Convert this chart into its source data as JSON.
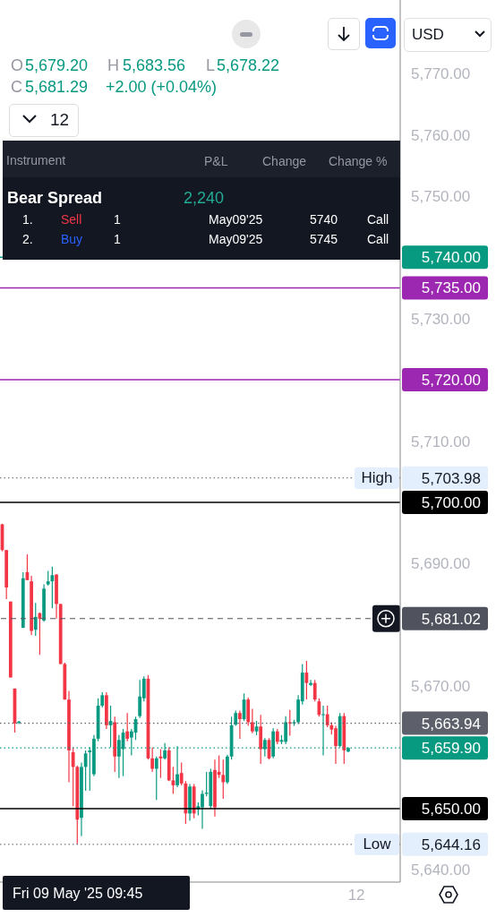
{
  "chart_data": {
    "type": "candlestick",
    "categories": [
      null,
      null,
      null,
      null,
      null,
      null,
      null,
      null,
      null,
      null,
      null,
      null,
      null,
      null,
      null,
      null,
      null,
      null,
      null,
      null,
      null,
      null,
      null,
      null,
      null,
      null,
      null,
      null,
      null,
      null,
      null,
      null,
      null,
      null,
      null,
      null,
      null,
      null,
      null,
      null,
      null,
      null,
      null,
      null,
      null,
      null,
      null,
      null,
      null,
      null,
      null,
      null,
      null,
      null,
      null,
      null,
      null,
      null,
      null,
      null,
      null,
      null,
      null,
      null,
      null,
      null,
      null,
      null,
      null,
      null,
      null,
      null,
      null,
      null,
      null,
      null,
      null,
      null,
      null,
      null,
      null,
      null,
      null,
      null,
      null,
      "12",
      null,
      null,
      null,
      null,
      null,
      null,
      null,
      null,
      null,
      null
    ],
    "ohlc": [
      [
        5696.4,
        5696.5,
        5692.0,
        5692.2
      ],
      [
        5692.2,
        5692.2,
        5684.2,
        5686.1
      ],
      [
        5683.8,
        5683.8,
        5671.4,
        5671.4
      ],
      [
        5669.6,
        5669.6,
        5662.4,
        5663.9
      ],
      [
        5664.0,
        5664.3,
        5663.8,
        5664.2
      ],
      [
        5679.5,
        5688.6,
        5679.5,
        5687.6
      ],
      [
        5688.6,
        5691.5,
        5687.3,
        5687.3
      ],
      [
        5687.1,
        5688.0,
        5678.3,
        5679.0
      ],
      [
        5679.2,
        5683.56,
        5678.22,
        5681.29
      ],
      [
        5681.9,
        5682.0,
        5675.1,
        5681.0
      ],
      [
        5680.7,
        5686.6,
        5680.5,
        5685.9
      ],
      [
        5686.6,
        5688.8,
        5686.4,
        5687.1
      ],
      [
        5687.1,
        5689.5,
        5682.7,
        5688.1
      ],
      [
        5688.2,
        5688.3,
        5681.0,
        5683.4
      ],
      [
        5683.4,
        5683.4,
        5673.6,
        5673.6
      ],
      [
        5673.6,
        5673.8,
        5667.8,
        5667.8
      ],
      [
        5667.8,
        5669.2,
        5654.3,
        5659.5
      ],
      [
        5659.2,
        5660.0,
        5650.4,
        5656.8
      ],
      [
        5656.8,
        5657.0,
        5644.16,
        5648.2
      ],
      [
        5648.5,
        5657.5,
        5645.5,
        5656.8
      ],
      [
        5656.8,
        5659.5,
        5652.9,
        5659.0
      ],
      [
        5659.2,
        5660.0,
        5652.9,
        5659.5
      ],
      [
        5655.6,
        5662.0,
        5655.3,
        5661.4
      ],
      [
        5661.4,
        5668.0,
        5661.0,
        5666.8
      ],
      [
        5666.8,
        5669.0,
        5666.5,
        5668.5
      ],
      [
        5668.5,
        5669.0,
        5663.0,
        5663.6
      ],
      [
        5663.6,
        5666.8,
        5660.0,
        5664.3
      ],
      [
        5664.1,
        5665.0,
        5656.0,
        5658.5
      ],
      [
        5658.5,
        5662.0,
        5655.0,
        5661.2
      ],
      [
        5659.7,
        5663.0,
        5655.3,
        5662.4
      ],
      [
        5662.6,
        5665.6,
        5661.0,
        5661.4
      ],
      [
        5661.6,
        5663.0,
        5658.7,
        5662.6
      ],
      [
        5662.4,
        5665.0,
        5661.2,
        5664.6
      ],
      [
        5665.1,
        5671.0,
        5664.8,
        5668.3
      ],
      [
        5668.0,
        5671.6,
        5667.5,
        5671.2
      ],
      [
        5671.2,
        5671.8,
        5658.0,
        5658.2
      ],
      [
        5658.2,
        5660.0,
        5656.0,
        5656.5
      ],
      [
        5656.5,
        5658.5,
        5651.4,
        5658.2
      ],
      [
        5658.5,
        5659.7,
        5655.0,
        5658.2
      ],
      [
        5658.2,
        5660.7,
        5658.0,
        5659.5
      ],
      [
        5659.5,
        5660.0,
        5654.5,
        5654.6
      ],
      [
        5654.6,
        5656.8,
        5652.4,
        5653.8
      ],
      [
        5653.8,
        5660.2,
        5653.5,
        5655.6
      ],
      [
        5655.8,
        5657.5,
        5653.8,
        5654.1
      ],
      [
        5654.1,
        5654.5,
        5647.5,
        5649.2
      ],
      [
        5649.2,
        5654.0,
        5648.0,
        5653.6
      ],
      [
        5653.6,
        5654.0,
        5648.4,
        5649.2
      ],
      [
        5649.9,
        5651.0,
        5648.9,
        5650.4
      ],
      [
        5650.2,
        5653.0,
        5646.7,
        5652.4
      ],
      [
        5652.4,
        5656.0,
        5652.0,
        5652.6
      ],
      [
        5650.4,
        5656.5,
        5650.0,
        5656.0
      ],
      [
        5656.3,
        5658.0,
        5648.7,
        5650.2
      ],
      [
        5656.0,
        5658.7,
        5655.0,
        5655.5
      ],
      [
        5655.5,
        5658.0,
        5651.6,
        5654.3
      ],
      [
        5654.3,
        5658.8,
        5654.0,
        5658.5
      ],
      [
        5658.5,
        5665.0,
        5658.0,
        5663.6
      ],
      [
        5663.7,
        5666.0,
        5663.5,
        5665.6
      ],
      [
        5665.6,
        5666.0,
        5661.4,
        5664.6
      ],
      [
        5664.6,
        5668.8,
        5664.3,
        5667.8
      ],
      [
        5667.8,
        5668.1,
        5663.5,
        5664.1
      ],
      [
        5664.1,
        5666.3,
        5662.3,
        5662.6
      ],
      [
        5662.6,
        5664.3,
        5662.0,
        5663.4
      ],
      [
        5663.4,
        5665.3,
        5657.3,
        5659.7
      ],
      [
        5659.7,
        5661.5,
        5658.5,
        5661.2
      ],
      [
        5661.2,
        5661.5,
        5658.0,
        5658.2
      ],
      [
        5658.5,
        5663.1,
        5658.2,
        5662.6
      ],
      [
        5662.6,
        5663.0,
        5660.5,
        5660.9
      ],
      [
        5660.9,
        5662.0,
        5660.5,
        5661.2
      ],
      [
        5660.9,
        5665.1,
        5660.5,
        5664.1
      ],
      [
        5664.1,
        5666.1,
        5661.9,
        5663.9
      ],
      [
        5663.9,
        5664.5,
        5663.5,
        5664.1
      ],
      [
        5664.1,
        5668.5,
        5663.8,
        5667.8
      ],
      [
        5667.5,
        5673.6,
        5667.0,
        5672.2
      ],
      [
        5672.2,
        5674.1,
        5667.8,
        5670.5
      ],
      [
        5670.2,
        5671.0,
        5670.0,
        5670.5
      ],
      [
        5670.5,
        5671.0,
        5667.5,
        5667.8
      ],
      [
        5667.5,
        5668.0,
        5665.0,
        5665.3
      ],
      [
        5665.3,
        5666.8,
        5658.7,
        5665.4
      ],
      [
        5665.4,
        5666.8,
        5663.3,
        5663.6
      ],
      [
        5663.6,
        5664.1,
        5662.1,
        5662.9
      ],
      [
        5663.1,
        5663.5,
        5657.3,
        5660.2
      ],
      [
        5660.2,
        5665.6,
        5660.0,
        5665.1
      ],
      [
        5665.1,
        5665.6,
        5657.3,
        5659.5
      ],
      [
        5659.3,
        5660.0,
        5659.2,
        5659.9
      ],
      null,
      null,
      null,
      null,
      null,
      null,
      null,
      null,
      null,
      null,
      null,
      null
    ],
    "colors": [
      "#f23645",
      "#f23645",
      "#f23645",
      "#f23645",
      "#089981",
      "#089981",
      "#f23645",
      "#f23645",
      "#089981",
      "#f23645",
      "#089981",
      "#089981",
      "#089981",
      "#f23645",
      "#f23645",
      "#f23645",
      "#f23645",
      "#f23645",
      "#f23645",
      "#089981",
      "#089981",
      "#089981",
      "#089981",
      "#089981",
      "#089981",
      "#f23645",
      "#089981",
      "#f23645",
      "#089981",
      "#089981",
      "#f23645",
      "#089981",
      "#089981",
      "#089981",
      "#089981",
      "#f23645",
      "#f23645",
      "#089981",
      "#f23645",
      "#089981",
      "#f23645",
      "#f23645",
      "#089981",
      "#f23645",
      "#f23645",
      "#089981",
      "#f23645",
      "#089981",
      "#089981",
      "#089981",
      "#089981",
      "#f23645",
      "#f23645",
      "#f23645",
      "#089981",
      "#089981",
      "#089981",
      "#f23645",
      "#089981",
      "#f23645",
      "#f23645",
      "#089981",
      "#f23645",
      "#089981",
      "#f23645",
      "#089981",
      "#f23645",
      "#089981",
      "#089981",
      "#f23645",
      "#089981",
      "#089981",
      "#089981",
      "#f23645",
      "#089981",
      "#f23645",
      "#f23645",
      "#089981",
      "#f23645",
      "#f23645",
      "#f23645",
      "#089981",
      "#f23645",
      "#089981",
      null,
      null,
      null,
      null,
      null,
      null,
      null,
      null,
      null,
      null,
      null,
      null
    ],
    "ylim": [
      5638,
      5782
    ],
    "yticks": [
      {
        "value": 5640,
        "label": "5,640.00"
      },
      {
        "value": 5670,
        "label": "5,670.00"
      },
      {
        "value": 5690,
        "label": "5,690.00"
      },
      {
        "value": 5710,
        "label": "5,710.00"
      },
      {
        "value": 5730,
        "label": "5,730.00"
      },
      {
        "value": 5750,
        "label": "5,750.00"
      },
      {
        "value": 5760,
        "label": "5,760.00"
      },
      {
        "value": 5770,
        "label": "5,770.00"
      }
    ],
    "ref_lines": [
      {
        "axis": "y",
        "value": 5740,
        "label": "5,740.00",
        "color": "#089981",
        "line_style": "solid"
      },
      {
        "axis": "y",
        "value": 5735,
        "label": "5,735.00",
        "color": "#9c27b0",
        "line_style": "solid"
      },
      {
        "axis": "y",
        "value": 5720,
        "label": "5,720.00",
        "color": "#9c27b0",
        "line_style": "solid"
      },
      {
        "axis": "y",
        "value": 5703.98,
        "label": "5,703.98",
        "color": "#787b86",
        "line_style": "dotted"
      },
      {
        "axis": "y",
        "value": 5700,
        "label": "5,700.00",
        "color": "#000000",
        "line_style": "solid"
      },
      {
        "axis": "y",
        "value": 5681.02,
        "label": "5,681.02",
        "color": "#50535e",
        "line_style": "dashed"
      },
      {
        "axis": "y",
        "value": 5663.94,
        "label": "5,663.94",
        "color": "#5d606b",
        "line_style": "dotted"
      },
      {
        "axis": "y",
        "value": 5659.9,
        "label": "5,659.90",
        "color": "#089981",
        "line_style": "dotted"
      },
      {
        "axis": "y",
        "value": 5650,
        "label": "5,650.00",
        "color": "#000000",
        "line_style": "solid"
      },
      {
        "axis": "y",
        "value": 5644.16,
        "label": "5,644.16",
        "color": "#787b86",
        "line_style": "dotted"
      }
    ],
    "annotations": [
      "O",
      "5,679.20",
      "H",
      "5,683.56",
      "L",
      "5,678.22",
      "C",
      "5,681.29",
      "+2.00 (+0.04%)",
      "12",
      "Instrument",
      "P&L",
      "Change",
      "Change %",
      "Bear Spread",
      "2,240",
      "1.",
      "Sell",
      "1",
      "May09'25",
      "5740",
      "Call",
      "2.",
      "Buy",
      "1",
      "May09'25",
      "5745",
      "Call",
      "USD",
      "Fri 09 May '25 09:45",
      {
        "text": "High",
        "y": 5703.98
      },
      {
        "text": "Low",
        "y": 5644.16
      }
    ]
  }
}
